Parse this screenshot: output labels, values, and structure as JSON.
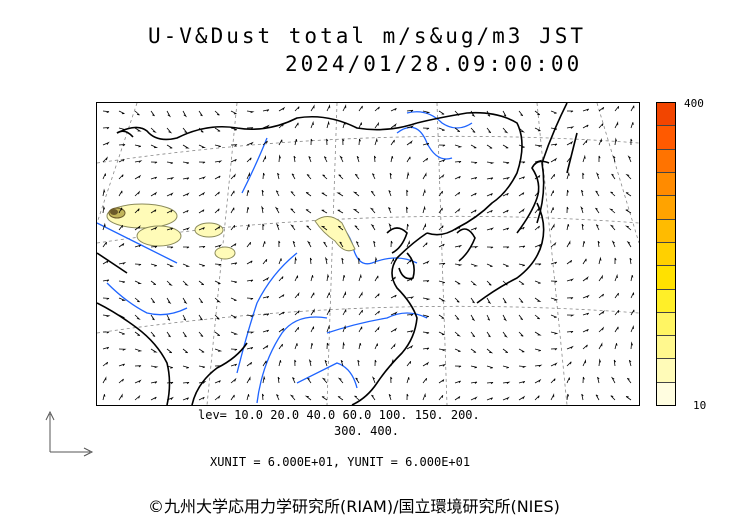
{
  "header": {
    "title_line1": "U-V&Dust total m/s&ug/m3 JST",
    "title_line2": "2024/01/28.09:00:00"
  },
  "legend": {
    "max_label": "400",
    "min_label": "10",
    "colors": [
      "#fffde0",
      "#fffbb8",
      "#fff88e",
      "#fff563",
      "#ffef28",
      "#ffe100",
      "#ffd000",
      "#ffbb00",
      "#ffa300",
      "#ff8b00",
      "#ff7300",
      "#ff5a00",
      "#f24500"
    ]
  },
  "levels": {
    "line1": "lev= 10.0 20.0 40.0 60.0 100. 150. 200.",
    "line2": "300. 400."
  },
  "units_text": "XUNIT = 6.000E+01, YUNIT = 6.000E+01",
  "credit": "©九州大学応用力学研究所(RIAM)/国立環境研究所(NIES)",
  "map_style": {
    "coast_color": "#000000",
    "river_color": "#1e64ff",
    "grid_color": "#888888",
    "dust_fill": "#fffbb8",
    "dust_edge": "#8a8a5a",
    "dust_dark": "#6b5a2a"
  }
}
